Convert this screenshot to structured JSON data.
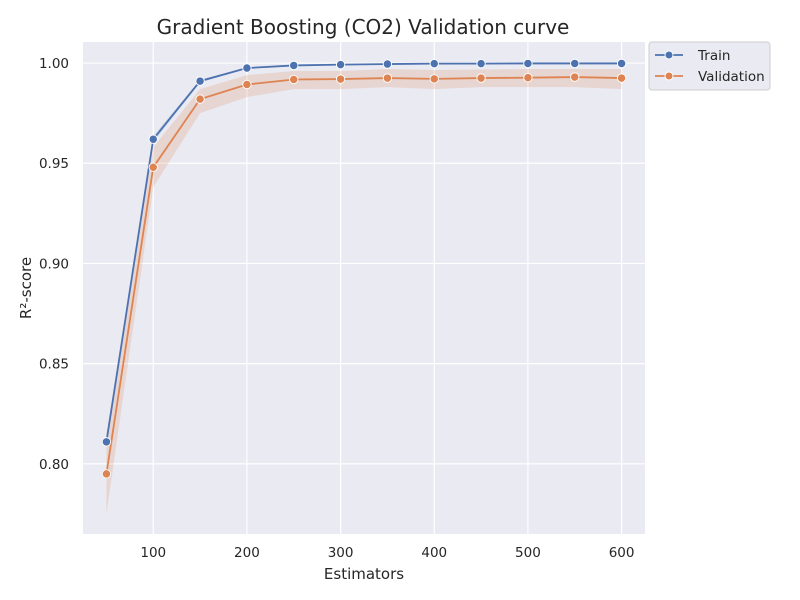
{
  "colors": {
    "background": "#eaeaf2",
    "grid": "#ffffff",
    "train": "#4c72b0",
    "validation": "#dd8452",
    "band": "#dd8452"
  },
  "chart_data": {
    "type": "line",
    "title": "Gradient Boosting (CO2) Validation curve",
    "xlabel": "Estimators",
    "ylabel": "R²-score",
    "xlim": [
      25,
      625
    ],
    "ylim": [
      0.765,
      1.0105
    ],
    "xticks": [
      100,
      200,
      300,
      400,
      500,
      600
    ],
    "yticks": [
      0.8,
      0.85,
      0.9,
      0.95,
      1.0
    ],
    "x": [
      50,
      100,
      150,
      200,
      250,
      300,
      350,
      400,
      450,
      500,
      550,
      600
    ],
    "grid": true,
    "legend_position": "outside-top-right",
    "series": [
      {
        "name": "Train",
        "color": "#4c72b0",
        "values": [
          0.811,
          0.962,
          0.991,
          0.9975,
          0.9988,
          0.9992,
          0.9995,
          0.9997,
          0.9997,
          0.9998,
          0.9998,
          0.9998
        ],
        "band_lower": [
          0.809,
          0.9605,
          0.9903,
          0.9972,
          0.9986,
          0.999,
          0.9993,
          0.9996,
          0.9996,
          0.9997,
          0.9997,
          0.9997
        ],
        "band_upper": [
          0.813,
          0.9635,
          0.9917,
          0.9978,
          0.999,
          0.9994,
          0.9997,
          0.9998,
          0.9998,
          0.9999,
          0.9999,
          0.9999
        ]
      },
      {
        "name": "Validation",
        "color": "#dd8452",
        "values": [
          0.795,
          0.948,
          0.982,
          0.9893,
          0.9918,
          0.992,
          0.9925,
          0.9921,
          0.9925,
          0.9927,
          0.993,
          0.9925
        ],
        "band_lower": [
          0.775,
          0.938,
          0.975,
          0.983,
          0.987,
          0.987,
          0.988,
          0.987,
          0.988,
          0.988,
          0.988,
          0.987
        ],
        "band_upper": [
          0.815,
          0.958,
          0.987,
          0.994,
          0.996,
          0.996,
          0.997,
          0.9965,
          0.9968,
          0.997,
          0.997,
          0.997
        ]
      }
    ]
  }
}
